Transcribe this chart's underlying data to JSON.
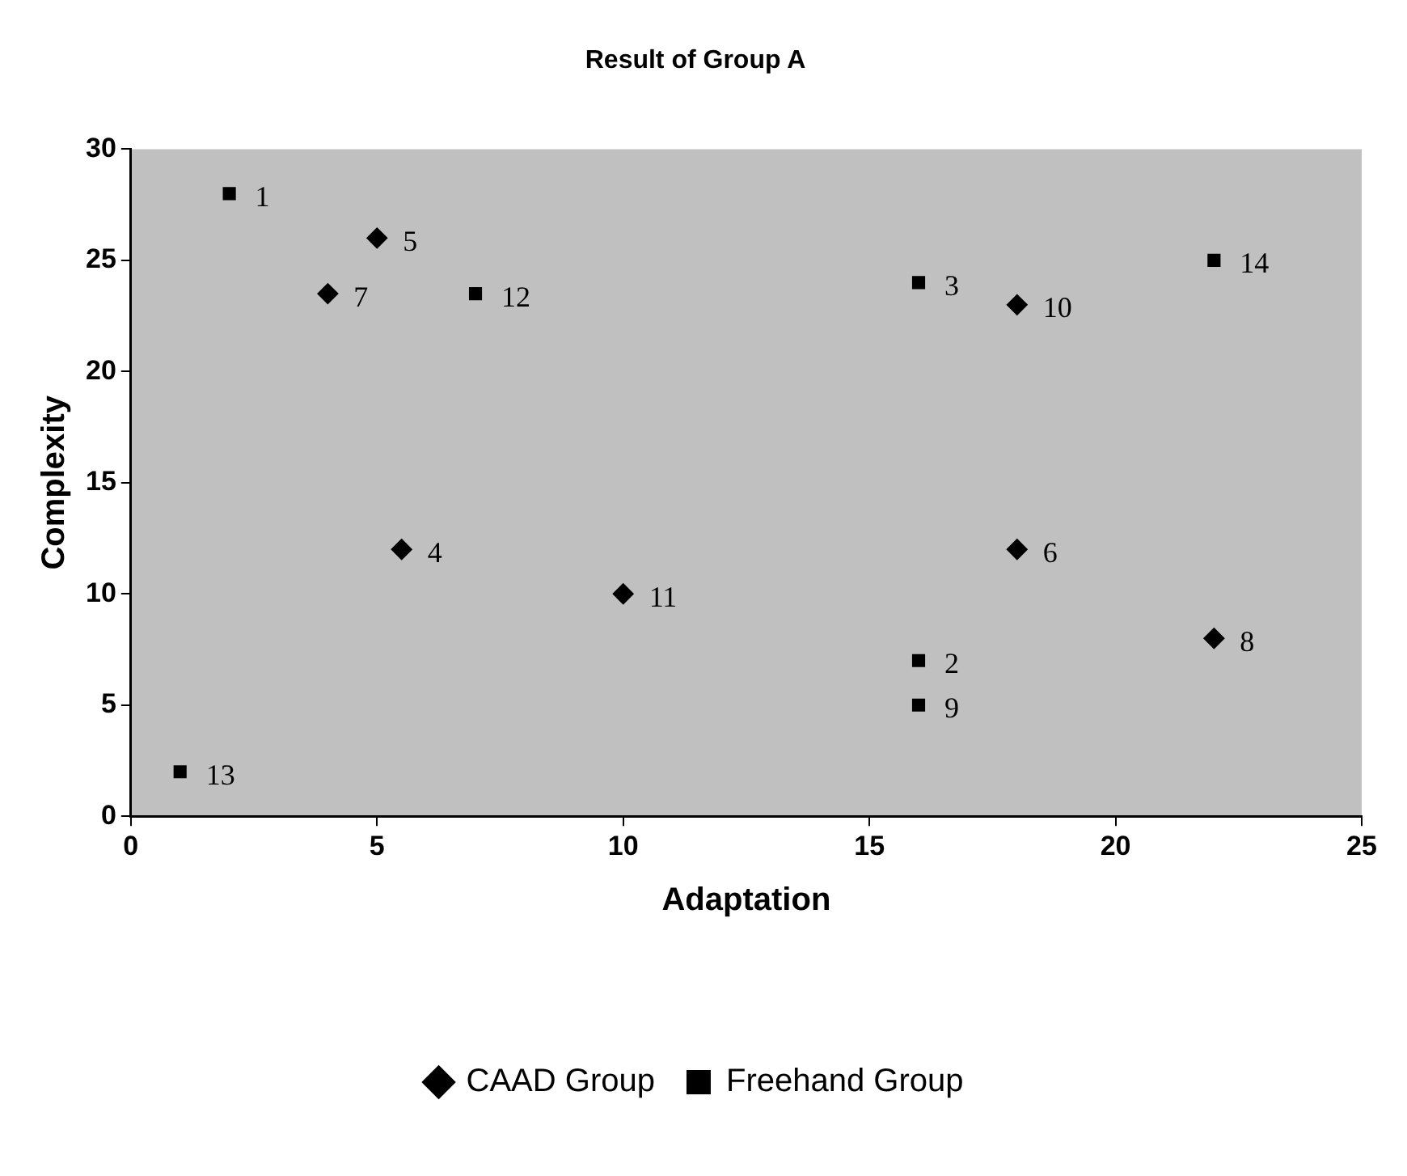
{
  "chart_data": {
    "type": "scatter",
    "title": "Result of Group A",
    "xlabel": "Adaptation",
    "ylabel": "Complexity",
    "xlim": [
      0,
      25
    ],
    "xticks": [
      0,
      5,
      10,
      15,
      20,
      25
    ],
    "ylim": [
      0,
      30
    ],
    "yticks": [
      0,
      5,
      10,
      15,
      20,
      25,
      30
    ],
    "grid": false,
    "legend": "bottom",
    "series": [
      {
        "name": "CAAD Group",
        "color": "#000000",
        "marker": "diamond",
        "x": [
          5.5,
          18,
          4,
          22,
          5,
          18,
          10
        ],
        "values": [
          12,
          12,
          23.5,
          8,
          26,
          23,
          10
        ]
      },
      {
        "name": "Freehand Group",
        "color": "#000000",
        "marker": "square",
        "x": [
          2,
          16,
          16,
          16,
          7,
          1,
          22
        ],
        "values": [
          28,
          7,
          24,
          5,
          23.5,
          2,
          25
        ]
      }
    ],
    "annotations": [
      {
        "text": "1",
        "x": 2,
        "y": 28
      },
      {
        "text": "2",
        "x": 16,
        "y": 7
      },
      {
        "text": "3",
        "x": 16,
        "y": 24
      },
      {
        "text": "4",
        "x": 5.5,
        "y": 12
      },
      {
        "text": "5",
        "x": 5,
        "y": 26
      },
      {
        "text": "6",
        "x": 18,
        "y": 12
      },
      {
        "text": "7",
        "x": 4,
        "y": 23.5
      },
      {
        "text": "8",
        "x": 22,
        "y": 8
      },
      {
        "text": "9",
        "x": 16,
        "y": 5
      },
      {
        "text": "10",
        "x": 18,
        "y": 23
      },
      {
        "text": "11",
        "x": 10,
        "y": 10
      },
      {
        "text": "12",
        "x": 7,
        "y": 23.5
      },
      {
        "text": "13",
        "x": 1,
        "y": 2
      },
      {
        "text": "14",
        "x": 22,
        "y": 25
      }
    ]
  }
}
